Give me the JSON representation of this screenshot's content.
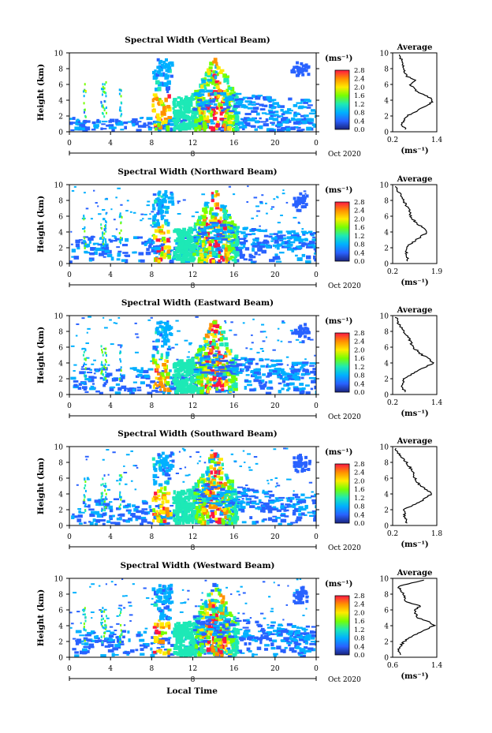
{
  "colorbar": {
    "unit_label": "(ms⁻¹)",
    "ticks": [
      "0.0",
      "0.4",
      "0.8",
      "1.2",
      "1.6",
      "2.0",
      "2.4",
      "2.8"
    ],
    "stops": [
      "#1a237e",
      "#2962ff",
      "#00b0ff",
      "#1de9b6",
      "#76ff03",
      "#ffea00",
      "#ff9100",
      "#ff1744"
    ]
  },
  "shared": {
    "y_ticks": [
      "0",
      "2",
      "4",
      "6",
      "8",
      "10"
    ],
    "x_ticks": [
      "0",
      "4",
      "8",
      "12",
      "16",
      "20",
      "0"
    ],
    "date_row_label": "8",
    "date_end_label": "Oct 2020",
    "ylabel": "Height (km)",
    "avg_title": "Average",
    "avg_xlabel": "(ms⁻¹)",
    "bottom_xlabel": "Local Time"
  },
  "chart_data": [
    {
      "type": "heatmap",
      "title": "Spectral Width (Vertical Beam)",
      "ylabel": "Height (km)",
      "ylim": [
        0,
        10
      ],
      "x_ticks": [
        "0",
        "4",
        "8",
        "12",
        "16",
        "20",
        "0"
      ],
      "avg_profile": {
        "xlim": [
          0.2,
          1.4
        ],
        "x_tick_labels": [
          "0.2",
          "1.4"
        ],
        "heights_km": [
          0.3,
          1.0,
          2.0,
          3.0,
          3.5,
          4.0,
          4.5,
          5.0,
          6.0,
          6.5,
          7.0,
          8.0,
          9.0,
          9.7
        ],
        "values": [
          0.55,
          0.45,
          0.6,
          1.0,
          1.2,
          1.3,
          1.15,
          0.9,
          0.65,
          0.85,
          0.6,
          0.5,
          0.45,
          0.4
        ]
      }
    },
    {
      "type": "heatmap",
      "title": "Spectral Width (Northward Beam)",
      "ylabel": "Height (km)",
      "ylim": [
        0,
        10
      ],
      "x_ticks": [
        "0",
        "4",
        "8",
        "12",
        "16",
        "20",
        "0"
      ],
      "avg_profile": {
        "xlim": [
          0.2,
          1.9
        ],
        "x_tick_labels": [
          "0.2",
          "1.9"
        ],
        "heights_km": [
          0.3,
          1.0,
          2.0,
          3.0,
          4.0,
          4.5,
          5.0,
          6.0,
          7.0,
          8.0,
          9.0,
          9.8
        ],
        "values": [
          0.8,
          0.75,
          0.7,
          1.1,
          1.55,
          1.4,
          1.15,
          0.9,
          0.8,
          0.6,
          0.45,
          0.3
        ]
      }
    },
    {
      "type": "heatmap",
      "title": "Spectral Width (Eastward Beam)",
      "ylabel": "Height (km)",
      "ylim": [
        0,
        10
      ],
      "x_ticks": [
        "0",
        "4",
        "8",
        "12",
        "16",
        "20",
        "0"
      ],
      "avg_profile": {
        "xlim": [
          0.2,
          1.4
        ],
        "x_tick_labels": [
          "0.2",
          "1.4"
        ],
        "heights_km": [
          0.3,
          1.0,
          2.0,
          3.0,
          4.0,
          4.5,
          5.0,
          6.0,
          7.0,
          8.0,
          9.0,
          9.8
        ],
        "values": [
          0.55,
          0.45,
          0.5,
          0.9,
          1.3,
          1.2,
          1.0,
          0.75,
          0.65,
          0.5,
          0.35,
          0.3
        ]
      }
    },
    {
      "type": "heatmap",
      "title": "Spectral Width (Southward Beam)",
      "ylabel": "Height (km)",
      "ylim": [
        0,
        10
      ],
      "x_ticks": [
        "0",
        "4",
        "8",
        "12",
        "16",
        "20",
        "0"
      ],
      "avg_profile": {
        "xlim": [
          0.2,
          1.8
        ],
        "x_tick_labels": [
          "0.2",
          "1.8"
        ],
        "heights_km": [
          0.3,
          1.0,
          2.0,
          3.0,
          4.0,
          4.5,
          5.0,
          6.0,
          7.0,
          8.0,
          9.0,
          9.7
        ],
        "values": [
          0.7,
          0.65,
          0.6,
          1.2,
          1.6,
          1.45,
          1.2,
          1.0,
          0.9,
          0.7,
          0.45,
          0.3
        ]
      }
    },
    {
      "type": "heatmap",
      "title": "Spectral Width (Westward Beam)",
      "ylabel": "Height (km)",
      "ylim": [
        0,
        10
      ],
      "x_ticks": [
        "0",
        "4",
        "8",
        "12",
        "16",
        "20",
        "0"
      ],
      "avg_profile": {
        "xlim": [
          0.6,
          1.4
        ],
        "x_tick_labels": [
          "0.6",
          "1.4"
        ],
        "heights_km": [
          0.3,
          1.0,
          2.0,
          3.0,
          4.0,
          4.5,
          5.0,
          6.0,
          6.5,
          7.0,
          8.0,
          9.0,
          9.8
        ],
        "values": [
          0.75,
          0.7,
          0.8,
          1.05,
          1.35,
          1.25,
          1.05,
          1.0,
          1.1,
          0.85,
          0.8,
          0.7,
          1.2
        ]
      }
    }
  ]
}
